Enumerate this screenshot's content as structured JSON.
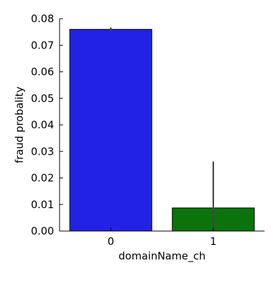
{
  "chart_data": {
    "type": "bar",
    "categories": [
      "0",
      "1"
    ],
    "values": [
      0.076,
      0.0087
    ],
    "error_bars": [
      {
        "low": 0.0755,
        "high": 0.0767
      },
      {
        "low": 0.0,
        "high": 0.0262
      }
    ],
    "colors": [
      "#2222e6",
      "#0b730b"
    ],
    "error_bar_color": "#444444",
    "title": "",
    "xlabel": "domainName_ch",
    "ylabel": "fraud probality",
    "ylim": [
      0,
      0.08
    ],
    "yticks": [
      0.0,
      0.01,
      0.02,
      0.03,
      0.04,
      0.05,
      0.06,
      0.07,
      0.08
    ],
    "ytick_labels": [
      "0.00",
      "0.01",
      "0.02",
      "0.03",
      "0.04",
      "0.05",
      "0.06",
      "0.07",
      "0.08"
    ],
    "grid": false,
    "spines": "left-bottom"
  }
}
